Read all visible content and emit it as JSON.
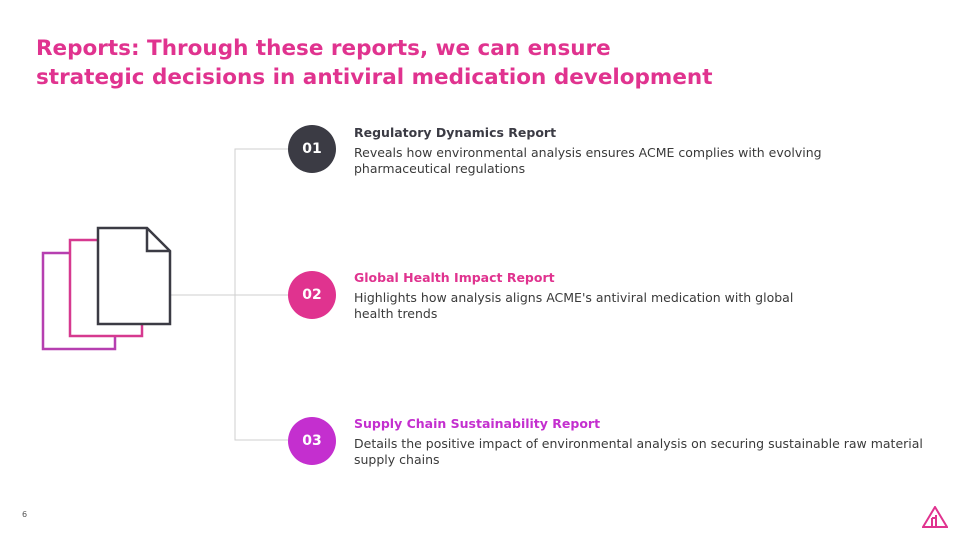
{
  "title": {
    "line1": "Reports: Through these reports, we can ensure",
    "line2": "strategic decisions in antiviral medication development"
  },
  "icons": {
    "documents": "documents-stack-icon",
    "logo": "brand-logo-icon"
  },
  "reports": [
    {
      "number": "01",
      "title": "Regulatory Dynamics Report",
      "description": "Reveals how environmental analysis ensures ACME complies with evolving pharmaceutical regulations",
      "color": "#3b3b44"
    },
    {
      "number": "02",
      "title": "Global Health Impact Report",
      "description": "Highlights how analysis aligns ACME's antiviral medication with global health trends",
      "color": "#e0338f"
    },
    {
      "number": "03",
      "title": "Supply Chain Sustainability Report",
      "description": "Details the positive impact of environmental analysis on securing sustainable raw material supply chains",
      "color": "#c42fcf"
    }
  ],
  "footer": {
    "page_number": "6"
  },
  "colors": {
    "accent": "#e0338f",
    "dark": "#3b3b44",
    "purple": "#c42fcf",
    "doc_back": "#b63fb0",
    "doc_mid": "#d6398f",
    "connector": "#cfcfcf"
  }
}
